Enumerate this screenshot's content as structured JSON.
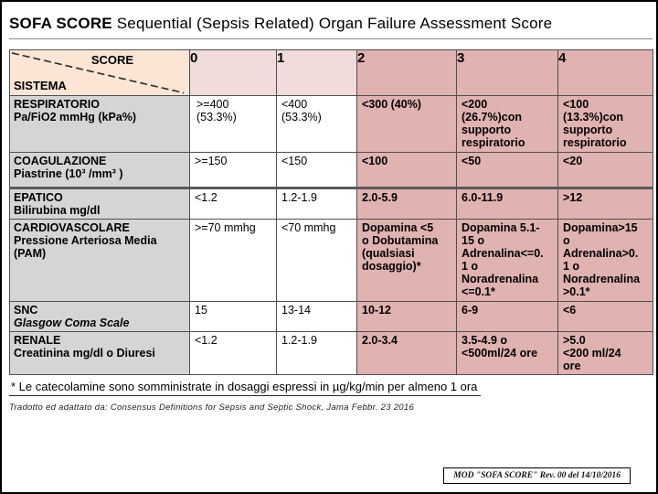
{
  "page": {
    "title_bold": "SOFA SCORE",
    "title_rest": " Sequential (Sepsis Related) Organ Failure Assessment Score"
  },
  "table": {
    "corner_top": "SCORE",
    "corner_bottom": "SISTEMA",
    "score_columns": [
      "0",
      "1",
      "2",
      "3",
      "4"
    ],
    "rows": [
      {
        "system": "RESPIRATORIO\nPa/FiO2 mmHg (kPa%)",
        "values": [
          ">=400\n(53.3%)",
          "<400\n(53.3%)",
          "<300 (40%)",
          "<200\n(26.7%)con\nsupporto\nrespiratorio",
          "<100\n(13.3%)con\nsupporto\nrespiratorio"
        ]
      },
      {
        "system": "COAGULAZIONE\nPiastrine (10³ /mm³ )",
        "values": [
          ">=150",
          "<150",
          "<100",
          "<50",
          "<20"
        ]
      },
      {
        "system": "EPATICO\nBilirubina mg/dl",
        "values": [
          "<1.2",
          "1.2-1.9",
          "2.0-5.9",
          "6.0-11.9",
          ">12"
        ]
      },
      {
        "system": "CARDIOVASCOLARE\nPressione Arteriosa Media\n(PAM)",
        "values": [
          ">=70 mmhg",
          "<70 mmhg",
          "Dopamina <5\no Dobutamina\n(qualsiasi\ndosaggio)*",
          "Dopamina 5.1-\n15 o\nAdrenalina<=0.\n1 o\nNoradrenalina\n<=0.1*",
          "Dopamina>15\no\nAdrenalina>0.\n1  o\nNoradrenalina\n>0.1*"
        ]
      },
      {
        "system": "SNC\nGlasgow Coma Scale",
        "detail_italic": true,
        "values": [
          "15",
          "13-14",
          "10-12",
          "6-9",
          "<6"
        ]
      },
      {
        "system": "RENALE\nCreatinina mg/dl o Diuresi",
        "values": [
          "<1.2",
          "1.2-1.9",
          "2.0-3.4",
          "3.5-4.9 o\n<500ml/24 ore",
          ">5.0\n<200 ml/24\nore"
        ]
      }
    ]
  },
  "footnotes": {
    "asterisk_note": "* Le catecolamine sono somministrate in dosaggi espressi in µg/kg/min per almeno 1 ora",
    "citation": "Tradotto ed adattato da: Consensus Definitions  for Sepsis and Septic Shock, Jama Febbr. 23 2016"
  },
  "footer": {
    "mod_label": "MOD \"SOFA SCORE\" Rev. 00 del 14/10/2016"
  },
  "colors": {
    "corner_bg": "#fce5d4",
    "score_01_bg": "#f1dbdb",
    "score_234_bg": "#e0b2b0",
    "system_bg": "#d5d5d5",
    "border": "#4f4f4f"
  }
}
